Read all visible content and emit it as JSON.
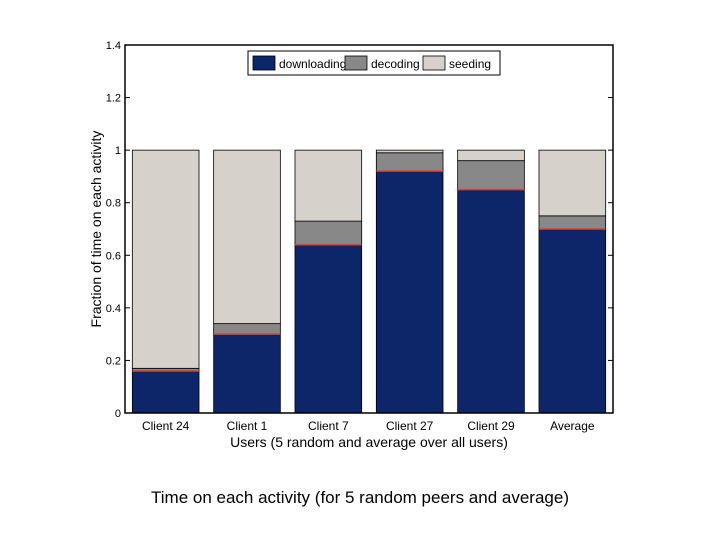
{
  "chart_data": {
    "type": "bar",
    "stacked": true,
    "categories": [
      "Client 24",
      "Client 1",
      "Client 7",
      "Client 27",
      "Client 29",
      "Average"
    ],
    "series": [
      {
        "name": "downloading",
        "color": "#0d2669",
        "values": [
          0.16,
          0.3,
          0.64,
          0.92,
          0.85,
          0.7
        ]
      },
      {
        "name": "decoding",
        "color": "#888888",
        "values": [
          0.01,
          0.04,
          0.09,
          0.07,
          0.11,
          0.05
        ]
      },
      {
        "name": "seeding",
        "color": "#d6d2cb",
        "values": [
          0.83,
          0.66,
          0.27,
          0.01,
          0.04,
          0.25
        ]
      }
    ],
    "xlabel": "Users (5 random and average over all users)",
    "ylabel": "Fraction of time on each activity",
    "ylim": [
      0,
      1.4
    ],
    "yticks": [
      "0",
      "0.2",
      "0.4",
      "0.6",
      "0.8",
      "1",
      "1.2",
      "1.4"
    ],
    "legend_position": "top-center",
    "grid": false
  },
  "caption": "Time on each activity (for 5 random peers and average)"
}
